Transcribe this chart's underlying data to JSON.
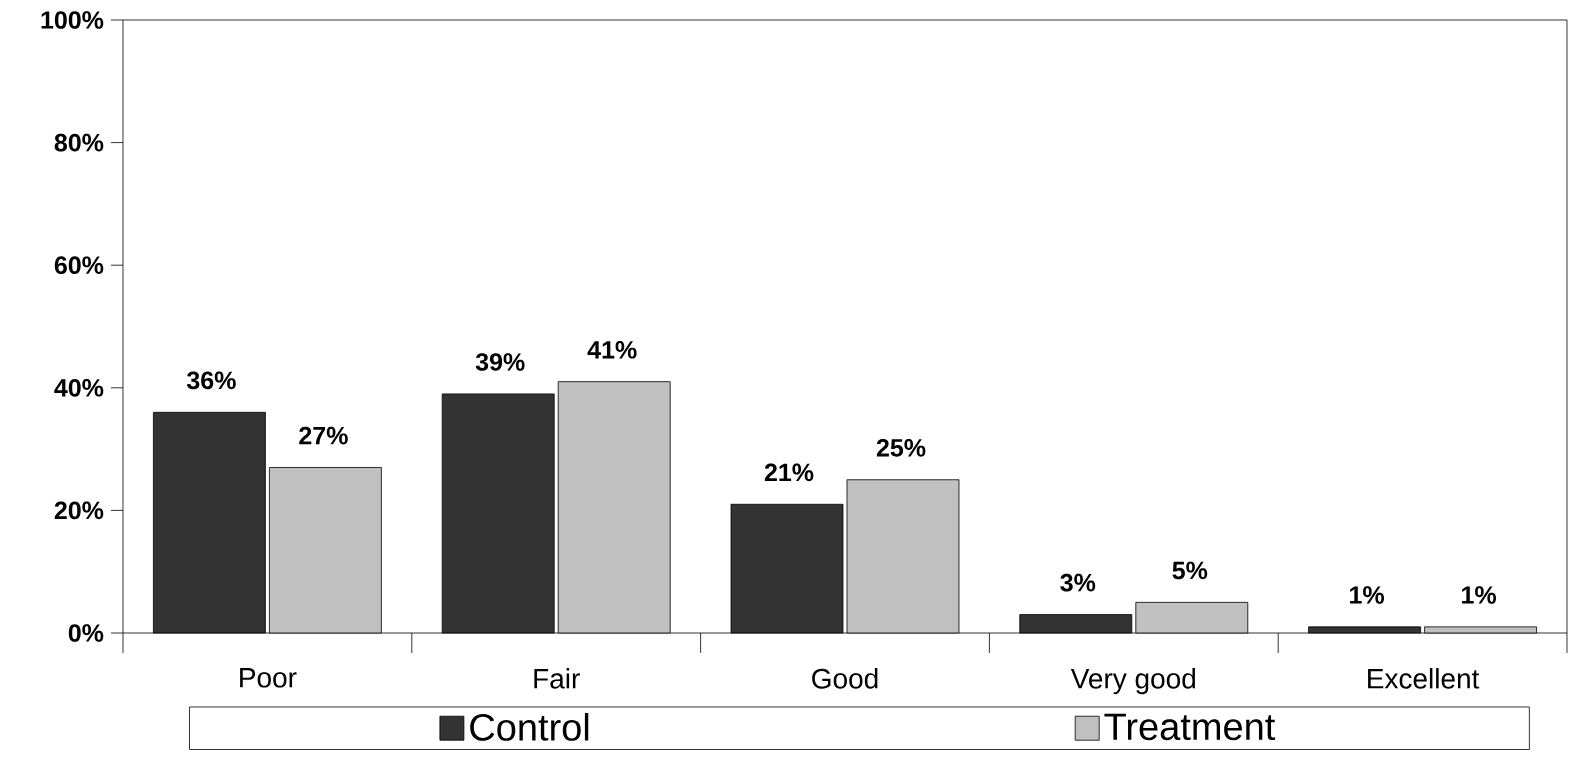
{
  "chart_data": {
    "type": "bar",
    "categories": [
      "Poor",
      "Fair",
      "Good",
      "Very good",
      "Excellent"
    ],
    "series": [
      {
        "name": "Control",
        "color": "#333333",
        "values": [
          36,
          39,
          21,
          3,
          1
        ],
        "value_labels": [
          "36%",
          "39%",
          "21%",
          "3%",
          "1%"
        ]
      },
      {
        "name": "Treatment",
        "color": "#c0c0c0",
        "values": [
          27,
          41,
          25,
          5,
          1
        ],
        "value_labels": [
          "27%",
          "41%",
          "25%",
          "5%",
          "1%"
        ]
      }
    ],
    "ylim": [
      0,
      100
    ],
    "yticks": [
      {
        "value": 0,
        "label": "0%"
      },
      {
        "value": 20,
        "label": "20%"
      },
      {
        "value": 40,
        "label": "40%"
      },
      {
        "value": 60,
        "label": "60%"
      },
      {
        "value": 80,
        "label": "80%"
      },
      {
        "value": 100,
        "label": "100%"
      }
    ],
    "grid": false,
    "legend": "bottom"
  }
}
